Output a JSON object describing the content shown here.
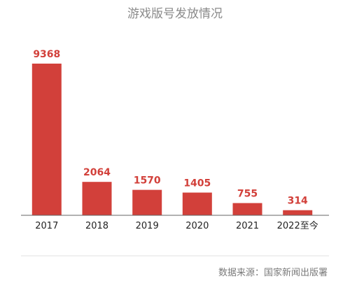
{
  "chart_data": {
    "type": "bar",
    "title": "游戏版号发放情况",
    "categories": [
      "2017",
      "2018",
      "2019",
      "2020",
      "2021",
      "2022至今"
    ],
    "values": [
      9368,
      2064,
      1570,
      1405,
      755,
      314
    ],
    "value_labels": [
      "9368",
      "2064",
      "1570",
      "1405",
      "755",
      "314"
    ],
    "ylim": [
      0,
      9368
    ],
    "grid": false,
    "bar_color": "#d2403a",
    "axis_color": "#666666",
    "source": "数据来源：国家新闻出版署"
  }
}
